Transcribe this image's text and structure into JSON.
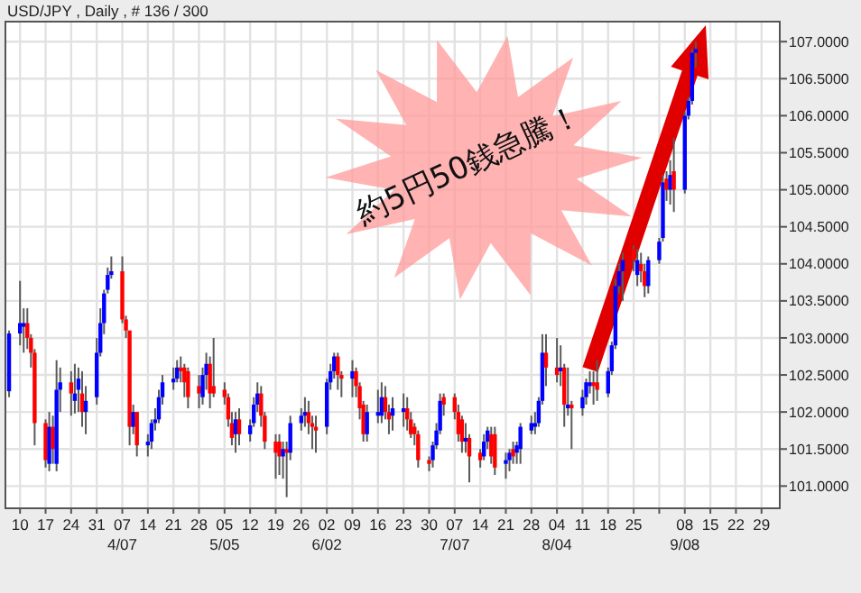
{
  "chart_data": {
    "type": "candlestick",
    "title": "USD/JPY , Daily , # 136 / 300",
    "annotations": [
      "約5円50銭急騰！"
    ],
    "x": [
      "--03-07",
      "--03-10",
      "--03-11",
      "--03-12",
      "--03-13",
      "--03-14",
      "--03-17",
      "--03-18",
      "--03-19",
      "--03-20",
      "--03-21",
      "--03-24",
      "--03-25",
      "--03-26",
      "--03-27",
      "--03-28",
      "--03-31",
      "--04-01",
      "--04-02",
      "--04-03",
      "--04-04",
      "--04-07",
      "--04-08",
      "--04-09",
      "--04-10",
      "--04-11",
      "--04-14",
      "--04-15",
      "--04-16",
      "--04-17",
      "--04-18",
      "--04-21",
      "--04-22",
      "--04-23",
      "--04-24",
      "--04-25",
      "--04-28",
      "--04-29",
      "--04-30",
      "--05-01",
      "--05-02",
      "--05-05",
      "--05-06",
      "--05-07",
      "--05-08",
      "--05-09",
      "--05-12",
      "--05-13",
      "--05-14",
      "--05-15",
      "--05-16",
      "--05-19",
      "--05-20",
      "--05-21",
      "--05-22",
      "--05-23",
      "--05-26",
      "--05-27",
      "--05-28",
      "--05-29",
      "--05-30",
      "--06-02",
      "--06-03",
      "--06-04",
      "--06-05",
      "--06-06",
      "--06-09",
      "--06-10",
      "--06-11",
      "--06-12",
      "--06-13",
      "--06-16",
      "--06-17",
      "--06-18",
      "--06-19",
      "--06-20",
      "--06-23",
      "--06-24",
      "--06-25",
      "--06-26",
      "--06-27",
      "--06-30",
      "--07-01",
      "--07-02",
      "--07-03",
      "--07-04",
      "--07-07",
      "--07-08",
      "--07-09",
      "--07-10",
      "--07-11",
      "--07-14",
      "--07-15",
      "--07-16",
      "--07-17",
      "--07-18",
      "--07-21",
      "--07-22",
      "--07-23",
      "--07-24",
      "--07-25",
      "--07-28",
      "--07-29",
      "--07-30",
      "--07-31",
      "--08-01",
      "--08-04",
      "--08-05",
      "--08-06",
      "--08-07",
      "--08-08",
      "--08-11",
      "--08-12",
      "--08-13",
      "--08-14",
      "--08-15",
      "--08-18",
      "--08-19",
      "--08-20",
      "--08-21",
      "--08-22",
      "--08-25",
      "--08-26",
      "--08-27",
      "--08-28",
      "--08-29",
      "--09-01",
      "--09-02",
      "--09-03",
      "--09-04",
      "--09-05",
      "--09-08",
      "--09-09",
      "--09-10",
      "--09-11"
    ],
    "ohlc": [
      [
        102.28,
        103.1,
        102.2,
        103.06
      ],
      [
        103.06,
        103.77,
        102.9,
        103.2
      ],
      [
        103.15,
        103.4,
        102.8,
        103.2
      ],
      [
        103.2,
        103.4,
        102.85,
        103.0
      ],
      [
        103.0,
        103.05,
        102.6,
        102.8
      ],
      [
        102.8,
        102.85,
        101.55,
        101.85
      ],
      [
        101.85,
        101.9,
        101.25,
        101.35
      ],
      [
        101.3,
        102.0,
        101.2,
        101.8
      ],
      [
        101.8,
        101.95,
        101.3,
        101.5
      ],
      [
        101.3,
        102.7,
        101.2,
        102.3
      ],
      [
        102.3,
        102.6,
        102.0,
        102.4
      ],
      [
        102.4,
        102.55,
        101.95,
        102.25
      ],
      [
        102.15,
        102.65,
        101.98,
        102.25
      ],
      [
        102.3,
        102.6,
        102.0,
        102.45
      ],
      [
        102.25,
        102.55,
        101.8,
        102.0
      ],
      [
        102.0,
        102.35,
        101.7,
        102.15
      ],
      [
        102.2,
        103.0,
        102.1,
        102.8
      ],
      [
        102.8,
        103.4,
        102.75,
        103.2
      ],
      [
        103.2,
        103.65,
        103.05,
        103.6
      ],
      [
        103.65,
        103.95,
        103.6,
        103.85
      ],
      [
        103.85,
        104.1,
        103.8,
        103.9
      ],
      [
        103.9,
        104.1,
        103.2,
        103.25
      ],
      [
        103.25,
        103.3,
        103.0,
        103.1
      ],
      [
        103.1,
        103.1,
        101.55,
        101.8
      ],
      [
        101.8,
        102.1,
        101.7,
        102.0
      ],
      [
        102.0,
        102.0,
        101.4,
        101.55
      ],
      [
        101.55,
        101.7,
        101.4,
        101.6
      ],
      [
        101.6,
        101.9,
        101.5,
        101.85
      ],
      [
        101.85,
        102.05,
        101.75,
        101.9
      ],
      [
        101.9,
        102.3,
        101.85,
        102.2
      ],
      [
        102.2,
        102.5,
        102.1,
        102.4
      ],
      [
        102.4,
        102.6,
        102.3,
        102.45
      ],
      [
        102.45,
        102.7,
        102.4,
        102.6
      ],
      [
        102.6,
        102.75,
        102.4,
        102.55
      ],
      [
        102.6,
        102.65,
        102.2,
        102.4
      ],
      [
        102.55,
        102.6,
        102.05,
        102.2
      ],
      [
        102.35,
        102.5,
        102.05,
        102.25
      ],
      [
        102.2,
        102.6,
        102.1,
        102.5
      ],
      [
        102.5,
        102.8,
        102.3,
        102.65
      ],
      [
        102.65,
        102.75,
        102.05,
        102.25
      ],
      [
        102.35,
        103.0,
        102.2,
        102.25
      ],
      [
        102.3,
        102.4,
        102.1,
        102.2
      ],
      [
        102.2,
        102.25,
        101.8,
        101.9
      ],
      [
        101.85,
        102.0,
        101.55,
        101.65
      ],
      [
        101.7,
        102.0,
        101.45,
        101.9
      ],
      [
        101.9,
        102.05,
        101.55,
        101.7
      ],
      [
        101.7,
        101.9,
        101.6,
        101.82
      ],
      [
        101.85,
        102.2,
        101.8,
        102.1
      ],
      [
        102.1,
        102.4,
        102.0,
        102.25
      ],
      [
        102.25,
        102.35,
        101.8,
        101.95
      ],
      [
        101.95,
        102.0,
        101.5,
        101.6
      ],
      [
        101.6,
        101.7,
        101.1,
        101.45
      ],
      [
        101.6,
        101.7,
        101.15,
        101.4
      ],
      [
        101.4,
        101.6,
        101.1,
        101.5
      ],
      [
        101.5,
        101.6,
        100.85,
        101.45
      ],
      [
        101.45,
        101.95,
        101.35,
        101.85
      ],
      [
        101.85,
        102.05,
        101.75,
        101.95
      ],
      [
        101.95,
        102.2,
        101.8,
        102.0
      ],
      [
        102.0,
        102.15,
        101.7,
        101.85
      ],
      [
        101.85,
        101.95,
        101.5,
        101.8
      ],
      [
        101.8,
        101.95,
        101.45,
        101.75
      ],
      [
        101.8,
        102.45,
        101.7,
        102.4
      ],
      [
        102.4,
        102.65,
        102.3,
        102.55
      ],
      [
        102.55,
        102.8,
        102.45,
        102.75
      ],
      [
        102.75,
        102.8,
        102.3,
        102.5
      ],
      [
        102.5,
        102.55,
        102.2,
        102.45
      ],
      [
        102.45,
        102.7,
        102.2,
        102.55
      ],
      [
        102.55,
        102.6,
        102.2,
        102.35
      ],
      [
        102.35,
        102.4,
        101.9,
        102.05
      ],
      [
        102.1,
        102.15,
        101.6,
        101.7
      ],
      [
        101.7,
        102.1,
        101.6,
        102.0
      ],
      [
        101.95,
        102.3,
        101.85,
        102.0
      ],
      [
        101.95,
        102.4,
        101.85,
        102.2
      ],
      [
        102.2,
        102.35,
        101.9,
        102.0
      ],
      [
        102.0,
        102.1,
        101.7,
        101.9
      ],
      [
        101.95,
        102.2,
        101.75,
        102.05
      ],
      [
        102.0,
        102.25,
        101.8,
        102.05
      ],
      [
        102.05,
        102.2,
        101.75,
        101.9
      ],
      [
        101.9,
        102.0,
        101.65,
        101.7
      ],
      [
        101.8,
        101.85,
        101.55,
        101.7
      ],
      [
        101.7,
        101.75,
        101.25,
        101.35
      ],
      [
        101.35,
        101.4,
        101.2,
        101.3
      ],
      [
        101.35,
        101.6,
        101.25,
        101.55
      ],
      [
        101.55,
        101.85,
        101.5,
        101.75
      ],
      [
        101.75,
        102.25,
        101.7,
        102.15
      ],
      [
        102.2,
        102.25,
        101.95,
        102.1
      ],
      [
        102.2,
        102.25,
        101.9,
        102.0
      ],
      [
        102.0,
        102.1,
        101.6,
        101.7
      ],
      [
        101.9,
        101.95,
        101.45,
        101.6
      ],
      [
        101.6,
        101.85,
        101.45,
        101.65
      ],
      [
        101.65,
        101.7,
        101.05,
        101.4
      ],
      [
        101.45,
        101.5,
        101.25,
        101.35
      ],
      [
        101.4,
        101.7,
        101.35,
        101.6
      ],
      [
        101.6,
        101.8,
        101.5,
        101.75
      ],
      [
        101.7,
        101.8,
        101.3,
        101.4
      ],
      [
        101.7,
        101.8,
        101.15,
        101.25
      ],
      [
        101.3,
        101.45,
        101.1,
        101.35
      ],
      [
        101.35,
        101.5,
        101.2,
        101.45
      ],
      [
        101.5,
        101.6,
        101.3,
        101.4
      ],
      [
        101.45,
        101.6,
        101.3,
        101.55
      ],
      [
        101.5,
        101.85,
        101.3,
        101.8
      ],
      [
        101.75,
        101.95,
        101.7,
        101.85
      ],
      [
        101.8,
        102.0,
        101.7,
        101.85
      ],
      [
        101.85,
        102.2,
        101.8,
        102.15
      ],
      [
        102.15,
        103.05,
        102.1,
        102.8
      ],
      [
        102.8,
        103.05,
        102.35,
        102.6
      ],
      [
        102.6,
        103.0,
        102.4,
        102.5
      ],
      [
        102.55,
        102.9,
        102.35,
        102.6
      ],
      [
        102.6,
        102.65,
        101.8,
        102.1
      ],
      [
        102.05,
        102.6,
        101.95,
        102.1
      ],
      [
        102.1,
        102.15,
        101.5,
        102.05
      ],
      [
        102.05,
        102.3,
        101.95,
        102.2
      ],
      [
        102.2,
        102.45,
        102.1,
        102.4
      ],
      [
        102.35,
        102.55,
        102.25,
        102.4
      ],
      [
        102.4,
        102.55,
        102.1,
        102.35
      ],
      [
        102.4,
        102.7,
        102.15,
        102.3
      ],
      [
        102.25,
        102.6,
        102.2,
        102.55
      ],
      [
        102.55,
        102.95,
        102.5,
        102.9
      ],
      [
        102.9,
        103.8,
        102.85,
        103.7
      ],
      [
        103.7,
        104.0,
        103.6,
        103.9
      ],
      [
        103.9,
        104.15,
        103.5,
        104.05
      ],
      [
        104.2,
        104.25,
        103.9,
        104.05
      ],
      [
        103.85,
        104.2,
        103.7,
        104.05
      ],
      [
        104.0,
        104.15,
        103.75,
        103.9
      ],
      [
        103.9,
        104.0,
        103.55,
        103.7
      ],
      [
        103.7,
        104.1,
        103.6,
        104.05
      ],
      [
        104.05,
        104.35,
        104.0,
        104.3
      ],
      [
        104.35,
        105.2,
        104.3,
        105.1
      ],
      [
        105.15,
        105.25,
        104.85,
        105.0
      ],
      [
        105.0,
        105.4,
        104.8,
        105.2
      ],
      [
        105.25,
        105.7,
        104.7,
        105.0
      ],
      [
        105.0,
        106.05,
        104.95,
        106.0
      ],
      [
        106.0,
        106.25,
        105.95,
        106.2
      ],
      [
        106.2,
        106.9,
        106.15,
        106.85
      ],
      [
        106.85,
        107.0,
        106.65,
        106.9
      ]
    ],
    "colors": [
      "#0000ff",
      "#0000ff",
      "#0000ff",
      "#ff0000",
      "#ff0000",
      "#ff0000",
      "#ff0000",
      "#0000ff",
      "#ff0000",
      "#0000ff",
      "#0000ff",
      "#ff0000",
      "#0000ff",
      "#0000ff",
      "#ff0000",
      "#0000ff",
      "#0000ff",
      "#0000ff",
      "#0000ff",
      "#0000ff",
      "#0000ff",
      "#ff0000",
      "#ff0000",
      "#ff0000",
      "#0000ff",
      "#ff0000",
      "#0000ff",
      "#0000ff",
      "#0000ff",
      "#0000ff",
      "#0000ff",
      "#0000ff",
      "#0000ff",
      "#ff0000",
      "#ff0000",
      "#ff0000",
      "#ff0000",
      "#0000ff",
      "#0000ff",
      "#ff0000",
      "#ff0000",
      "#ff0000",
      "#ff0000",
      "#ff0000",
      "#0000ff",
      "#ff0000",
      "#0000ff",
      "#0000ff",
      "#0000ff",
      "#ff0000",
      "#ff0000",
      "#ff0000",
      "#ff0000",
      "#0000ff",
      "#ff0000",
      "#0000ff",
      "#0000ff",
      "#0000ff",
      "#ff0000",
      "#ff0000",
      "#ff0000",
      "#0000ff",
      "#0000ff",
      "#0000ff",
      "#ff0000",
      "#ff0000",
      "#0000ff",
      "#ff0000",
      "#ff0000",
      "#ff0000",
      "#0000ff",
      "#0000ff",
      "#0000ff",
      "#ff0000",
      "#ff0000",
      "#0000ff",
      "#0000ff",
      "#ff0000",
      "#ff0000",
      "#ff0000",
      "#ff0000",
      "#ff0000",
      "#0000ff",
      "#0000ff",
      "#0000ff",
      "#ff0000",
      "#ff0000",
      "#ff0000",
      "#ff0000",
      "#0000ff",
      "#ff0000",
      "#ff0000",
      "#0000ff",
      "#0000ff",
      "#ff0000",
      "#ff0000",
      "#0000ff",
      "#0000ff",
      "#ff0000",
      "#0000ff",
      "#0000ff",
      "#0000ff",
      "#0000ff",
      "#0000ff",
      "#0000ff",
      "#ff0000",
      "#ff0000",
      "#0000ff",
      "#ff0000",
      "#0000ff",
      "#ff0000",
      "#0000ff",
      "#0000ff",
      "#0000ff",
      "#ff0000",
      "#ff0000",
      "#0000ff",
      "#0000ff",
      "#0000ff",
      "#0000ff",
      "#0000ff",
      "#ff0000",
      "#0000ff",
      "#ff0000",
      "#ff0000",
      "#0000ff",
      "#0000ff",
      "#0000ff",
      "#ff0000",
      "#0000ff",
      "#ff0000",
      "#0000ff",
      "#0000ff",
      "#0000ff",
      "#0000ff"
    ],
    "xlim": [
      "--03-06",
      "--10-04"
    ],
    "xticks": [
      {
        "value": "--03-10",
        "label": "10"
      },
      {
        "value": "--03-17",
        "label": "17"
      },
      {
        "value": "--03-24",
        "label": "24"
      },
      {
        "value": "--03-31",
        "label": "31"
      },
      {
        "value": "--04-07",
        "label": "07\n4/07"
      },
      {
        "value": "--04-14",
        "label": "14"
      },
      {
        "value": "--04-21",
        "label": "21"
      },
      {
        "value": "--04-28",
        "label": "28"
      },
      {
        "value": "--05-05",
        "label": "05\n5/05"
      },
      {
        "value": "--05-12",
        "label": "12"
      },
      {
        "value": "--05-19",
        "label": "19"
      },
      {
        "value": "--05-26",
        "label": "26"
      },
      {
        "value": "--06-02",
        "label": "02\n6/02"
      },
      {
        "value": "--06-09",
        "label": "09"
      },
      {
        "value": "--06-16",
        "label": "16"
      },
      {
        "value": "--06-23",
        "label": "23"
      },
      {
        "value": "--06-30",
        "label": "30"
      },
      {
        "value": "--07-07",
        "label": "07\n7/07"
      },
      {
        "value": "--07-14",
        "label": "14"
      },
      {
        "value": "--07-21",
        "label": "21"
      },
      {
        "value": "--07-28",
        "label": "28"
      },
      {
        "value": "--08-04",
        "label": "04\n8/04"
      },
      {
        "value": "--08-11",
        "label": "11"
      },
      {
        "value": "--08-18",
        "label": "18"
      },
      {
        "value": "--08-25",
        "label": "25"
      },
      {
        "value": "--09-01",
        "label": null
      },
      {
        "value": "--09-08",
        "label": "08\n9/08"
      },
      {
        "value": "--09-15",
        "label": "15"
      },
      {
        "value": "--09-22",
        "label": "22"
      },
      {
        "value": "--09-29",
        "label": "29"
      }
    ],
    "ylim": [
      100.7,
      107.27
    ],
    "yticks": [
      {
        "value": 101,
        "label": "101.0000"
      },
      {
        "value": 101.5,
        "label": "101.5000"
      },
      {
        "value": 102,
        "label": "102.0000"
      },
      {
        "value": 102.5,
        "label": "102.5000"
      },
      {
        "value": 103,
        "label": "103.0000"
      },
      {
        "value": 103.5,
        "label": "103.5000"
      },
      {
        "value": 104,
        "label": "104.0000"
      },
      {
        "value": 104.5,
        "label": "104.5000"
      },
      {
        "value": 105,
        "label": "105.0000"
      },
      {
        "value": 105.5,
        "label": "105.5000"
      },
      {
        "value": 106,
        "label": "106.0000"
      },
      {
        "value": 106.5,
        "label": "106.5000"
      },
      {
        "value": 107,
        "label": "107.0000"
      }
    ],
    "grid": true
  }
}
